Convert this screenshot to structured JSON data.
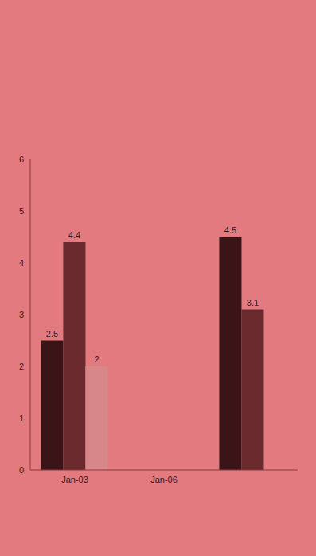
{
  "chart_data": {
    "type": "bar",
    "categories": [
      "Jan-03",
      "Jan-06",
      null
    ],
    "series": [
      {
        "color": "#3a1416",
        "values": [
          2.5,
          null,
          4.5
        ]
      },
      {
        "color": "#6b2a2e",
        "values": [
          4.4,
          null,
          3.1
        ]
      },
      {
        "color": "#d7868a",
        "values": [
          2,
          null,
          null
        ]
      }
    ],
    "ylim": [
      0,
      6
    ],
    "yticks": [
      0,
      1,
      2,
      3,
      4,
      5,
      6
    ],
    "data_labels": true,
    "grid": false
  }
}
